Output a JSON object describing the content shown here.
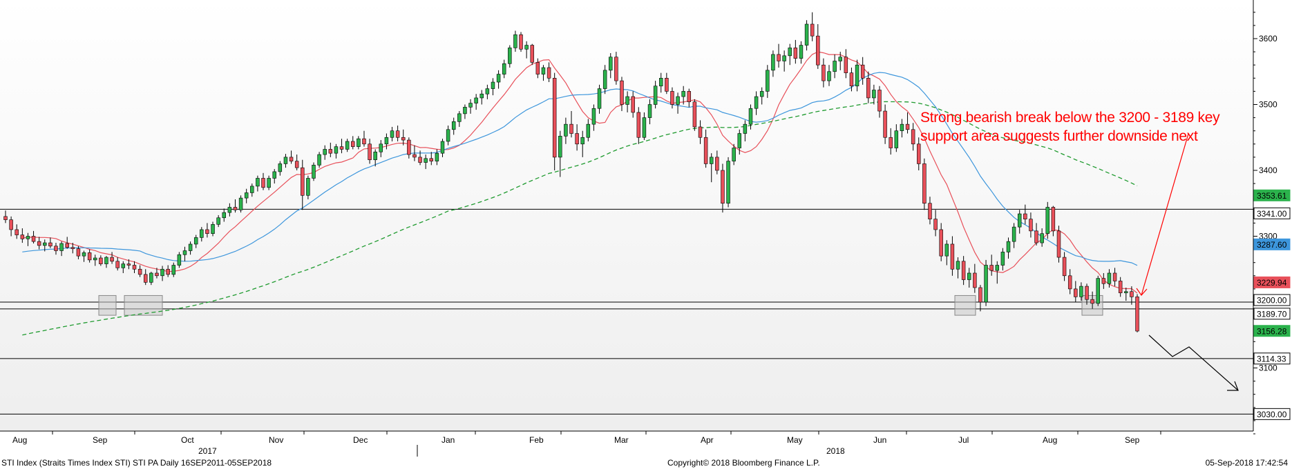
{
  "chart_data": {
    "type": "candlestick",
    "title": "",
    "series_label": "STI Index (Straits Times Index STI) STI PA  Daily 16SEP2011-05SEP2018",
    "y_axis": {
      "side": "right",
      "ylim": [
        2960,
        3650
      ],
      "ticks": [
        3100,
        3200,
        3300,
        3400,
        3500,
        3600
      ],
      "log": false
    },
    "x_axis": {
      "months": [
        "Aug",
        "Sep",
        "Oct",
        "Nov",
        "Dec",
        "Jan",
        "Feb",
        "Mar",
        "Apr",
        "May",
        "Jun",
        "Jul",
        "Aug",
        "Sep"
      ],
      "years": [
        "2017",
        "2018"
      ]
    },
    "grid": false,
    "candles_ohlc": [
      [
        3330,
        3339,
        3320,
        3325
      ],
      [
        3325,
        3330,
        3300,
        3310
      ],
      [
        3310,
        3318,
        3296,
        3302
      ],
      [
        3302,
        3312,
        3290,
        3296
      ],
      [
        3296,
        3305,
        3285,
        3300
      ],
      [
        3300,
        3308,
        3289,
        3292
      ],
      [
        3292,
        3299,
        3280,
        3286
      ],
      [
        3286,
        3295,
        3277,
        3290
      ],
      [
        3290,
        3298,
        3282,
        3285
      ],
      [
        3285,
        3290,
        3272,
        3278
      ],
      [
        3278,
        3292,
        3270,
        3289
      ],
      [
        3289,
        3299,
        3281,
        3283
      ],
      [
        3283,
        3290,
        3274,
        3281
      ],
      [
        3281,
        3285,
        3265,
        3270
      ],
      [
        3270,
        3278,
        3261,
        3275
      ],
      [
        3275,
        3280,
        3260,
        3264
      ],
      [
        3264,
        3272,
        3255,
        3267
      ],
      [
        3267,
        3271,
        3255,
        3258
      ],
      [
        3258,
        3270,
        3252,
        3268
      ],
      [
        3268,
        3276,
        3258,
        3262
      ],
      [
        3262,
        3268,
        3248,
        3252
      ],
      [
        3252,
        3262,
        3244,
        3258
      ],
      [
        3258,
        3265,
        3250,
        3256
      ],
      [
        3256,
        3262,
        3244,
        3250
      ],
      [
        3250,
        3256,
        3238,
        3242
      ],
      [
        3242,
        3250,
        3226,
        3230
      ],
      [
        3230,
        3246,
        3226,
        3244
      ],
      [
        3244,
        3252,
        3236,
        3240
      ],
      [
        3240,
        3255,
        3232,
        3250
      ],
      [
        3250,
        3256,
        3238,
        3242
      ],
      [
        3242,
        3260,
        3238,
        3256
      ],
      [
        3256,
        3276,
        3252,
        3272
      ],
      [
        3272,
        3284,
        3262,
        3278
      ],
      [
        3278,
        3292,
        3272,
        3288
      ],
      [
        3288,
        3302,
        3282,
        3298
      ],
      [
        3298,
        3314,
        3292,
        3310
      ],
      [
        3310,
        3320,
        3298,
        3304
      ],
      [
        3304,
        3322,
        3300,
        3318
      ],
      [
        3318,
        3332,
        3314,
        3328
      ],
      [
        3328,
        3342,
        3322,
        3336
      ],
      [
        3336,
        3350,
        3330,
        3344
      ],
      [
        3344,
        3356,
        3336,
        3340
      ],
      [
        3340,
        3362,
        3336,
        3358
      ],
      [
        3358,
        3372,
        3350,
        3366
      ],
      [
        3366,
        3380,
        3360,
        3376
      ],
      [
        3376,
        3392,
        3368,
        3388
      ],
      [
        3388,
        3396,
        3370,
        3374
      ],
      [
        3374,
        3392,
        3370,
        3388
      ],
      [
        3388,
        3402,
        3380,
        3398
      ],
      [
        3398,
        3414,
        3392,
        3410
      ],
      [
        3410,
        3425,
        3404,
        3420
      ],
      [
        3420,
        3430,
        3410,
        3414
      ],
      [
        3414,
        3424,
        3400,
        3404
      ],
      [
        3404,
        3416,
        3340,
        3362
      ],
      [
        3362,
        3392,
        3356,
        3388
      ],
      [
        3388,
        3412,
        3384,
        3408
      ],
      [
        3408,
        3428,
        3404,
        3424
      ],
      [
        3424,
        3438,
        3416,
        3432
      ],
      [
        3432,
        3442,
        3420,
        3426
      ],
      [
        3426,
        3440,
        3418,
        3436
      ],
      [
        3436,
        3448,
        3426,
        3432
      ],
      [
        3432,
        3448,
        3428,
        3444
      ],
      [
        3444,
        3452,
        3432,
        3436
      ],
      [
        3436,
        3452,
        3432,
        3448
      ],
      [
        3448,
        3460,
        3436,
        3440
      ],
      [
        3440,
        3448,
        3410,
        3416
      ],
      [
        3416,
        3432,
        3406,
        3428
      ],
      [
        3428,
        3446,
        3420,
        3440
      ],
      [
        3440,
        3456,
        3432,
        3450
      ],
      [
        3450,
        3466,
        3444,
        3460
      ],
      [
        3460,
        3468,
        3444,
        3450
      ],
      [
        3450,
        3462,
        3438,
        3446
      ],
      [
        3446,
        3450,
        3418,
        3424
      ],
      [
        3424,
        3438,
        3414,
        3420
      ],
      [
        3420,
        3430,
        3408,
        3412
      ],
      [
        3412,
        3424,
        3402,
        3418
      ],
      [
        3418,
        3428,
        3408,
        3414
      ],
      [
        3414,
        3432,
        3408,
        3426
      ],
      [
        3426,
        3448,
        3420,
        3444
      ],
      [
        3444,
        3468,
        3438,
        3462
      ],
      [
        3462,
        3480,
        3454,
        3474
      ],
      [
        3474,
        3490,
        3466,
        3486
      ],
      [
        3486,
        3500,
        3478,
        3496
      ],
      [
        3496,
        3508,
        3486,
        3502
      ],
      [
        3502,
        3516,
        3492,
        3510
      ],
      [
        3510,
        3522,
        3500,
        3516
      ],
      [
        3516,
        3530,
        3508,
        3524
      ],
      [
        3524,
        3540,
        3514,
        3534
      ],
      [
        3534,
        3552,
        3524,
        3546
      ],
      [
        3546,
        3568,
        3540,
        3562
      ],
      [
        3562,
        3590,
        3556,
        3586
      ],
      [
        3586,
        3612,
        3580,
        3606
      ],
      [
        3606,
        3610,
        3580,
        3584
      ],
      [
        3584,
        3596,
        3570,
        3590
      ],
      [
        3590,
        3592,
        3560,
        3564
      ],
      [
        3564,
        3570,
        3540,
        3546
      ],
      [
        3546,
        3560,
        3536,
        3556
      ],
      [
        3556,
        3564,
        3534,
        3540
      ],
      [
        3540,
        3548,
        3400,
        3420
      ],
      [
        3420,
        3460,
        3390,
        3452
      ],
      [
        3452,
        3480,
        3440,
        3470
      ],
      [
        3470,
        3490,
        3450,
        3456
      ],
      [
        3456,
        3470,
        3430,
        3440
      ],
      [
        3440,
        3460,
        3420,
        3450
      ],
      [
        3450,
        3478,
        3444,
        3470
      ],
      [
        3470,
        3500,
        3460,
        3494
      ],
      [
        3494,
        3530,
        3486,
        3524
      ],
      [
        3524,
        3560,
        3516,
        3552
      ],
      [
        3552,
        3578,
        3540,
        3572
      ],
      [
        3572,
        3580,
        3530,
        3536
      ],
      [
        3536,
        3542,
        3490,
        3500
      ],
      [
        3500,
        3520,
        3488,
        3512
      ],
      [
        3512,
        3520,
        3480,
        3488
      ],
      [
        3488,
        3496,
        3440,
        3450
      ],
      [
        3450,
        3488,
        3446,
        3480
      ],
      [
        3480,
        3508,
        3470,
        3500
      ],
      [
        3500,
        3536,
        3494,
        3528
      ],
      [
        3528,
        3548,
        3518,
        3540
      ],
      [
        3540,
        3548,
        3516,
        3520
      ],
      [
        3520,
        3526,
        3494,
        3500
      ],
      [
        3500,
        3518,
        3486,
        3512
      ],
      [
        3512,
        3528,
        3500,
        3520
      ],
      [
        3520,
        3524,
        3496,
        3504
      ],
      [
        3504,
        3508,
        3460,
        3466
      ],
      [
        3466,
        3476,
        3440,
        3450
      ],
      [
        3450,
        3462,
        3404,
        3410
      ],
      [
        3410,
        3426,
        3382,
        3420
      ],
      [
        3420,
        3430,
        3394,
        3400
      ],
      [
        3400,
        3410,
        3336,
        3350
      ],
      [
        3350,
        3420,
        3344,
        3414
      ],
      [
        3414,
        3440,
        3408,
        3434
      ],
      [
        3434,
        3462,
        3424,
        3456
      ],
      [
        3456,
        3476,
        3444,
        3470
      ],
      [
        3470,
        3500,
        3462,
        3494
      ],
      [
        3494,
        3520,
        3484,
        3512
      ],
      [
        3512,
        3526,
        3500,
        3520
      ],
      [
        3520,
        3560,
        3510,
        3552
      ],
      [
        3552,
        3582,
        3542,
        3576
      ],
      [
        3576,
        3592,
        3556,
        3566
      ],
      [
        3566,
        3582,
        3550,
        3574
      ],
      [
        3574,
        3592,
        3560,
        3586
      ],
      [
        3586,
        3598,
        3562,
        3570
      ],
      [
        3570,
        3596,
        3562,
        3590
      ],
      [
        3590,
        3628,
        3582,
        3622
      ],
      [
        3622,
        3640,
        3596,
        3604
      ],
      [
        3604,
        3622,
        3554,
        3560
      ],
      [
        3560,
        3570,
        3526,
        3536
      ],
      [
        3536,
        3560,
        3528,
        3550
      ],
      [
        3550,
        3576,
        3540,
        3566
      ],
      [
        3566,
        3580,
        3552,
        3572
      ],
      [
        3572,
        3584,
        3540,
        3548
      ],
      [
        3548,
        3556,
        3520,
        3528
      ],
      [
        3528,
        3568,
        3520,
        3560
      ],
      [
        3560,
        3572,
        3530,
        3540
      ],
      [
        3540,
        3550,
        3502,
        3510
      ],
      [
        3510,
        3530,
        3500,
        3522
      ],
      [
        3522,
        3528,
        3480,
        3490
      ],
      [
        3490,
        3500,
        3440,
        3450
      ],
      [
        3450,
        3464,
        3424,
        3434
      ],
      [
        3434,
        3470,
        3428,
        3460
      ],
      [
        3460,
        3478,
        3450,
        3470
      ],
      [
        3470,
        3488,
        3456,
        3462
      ],
      [
        3462,
        3472,
        3430,
        3440
      ],
      [
        3440,
        3450,
        3400,
        3410
      ],
      [
        3410,
        3418,
        3340,
        3350
      ],
      [
        3350,
        3360,
        3318,
        3326
      ],
      [
        3326,
        3340,
        3300,
        3310
      ],
      [
        3310,
        3320,
        3262,
        3270
      ],
      [
        3270,
        3294,
        3256,
        3288
      ],
      [
        3288,
        3300,
        3240,
        3250
      ],
      [
        3250,
        3268,
        3236,
        3262
      ],
      [
        3262,
        3270,
        3226,
        3234
      ],
      [
        3234,
        3252,
        3222,
        3244
      ],
      [
        3244,
        3258,
        3214,
        3222
      ],
      [
        3222,
        3226,
        3186,
        3200
      ],
      [
        3200,
        3264,
        3194,
        3256
      ],
      [
        3256,
        3272,
        3240,
        3248
      ],
      [
        3248,
        3262,
        3228,
        3256
      ],
      [
        3256,
        3282,
        3248,
        3276
      ],
      [
        3276,
        3298,
        3266,
        3292
      ],
      [
        3292,
        3320,
        3282,
        3314
      ],
      [
        3314,
        3340,
        3304,
        3334
      ],
      [
        3334,
        3348,
        3318,
        3326
      ],
      [
        3326,
        3336,
        3298,
        3308
      ],
      [
        3308,
        3320,
        3286,
        3290
      ],
      [
        3290,
        3312,
        3284,
        3304
      ],
      [
        3304,
        3352,
        3296,
        3344
      ],
      [
        3344,
        3346,
        3300,
        3308
      ],
      [
        3308,
        3316,
        3260,
        3268
      ],
      [
        3268,
        3276,
        3232,
        3240
      ],
      [
        3240,
        3250,
        3212,
        3220
      ],
      [
        3220,
        3232,
        3200,
        3208
      ],
      [
        3208,
        3230,
        3202,
        3224
      ],
      [
        3224,
        3228,
        3196,
        3204
      ],
      [
        3204,
        3216,
        3190,
        3198
      ],
      [
        3198,
        3240,
        3194,
        3236
      ],
      [
        3236,
        3244,
        3220,
        3228
      ],
      [
        3228,
        3250,
        3222,
        3244
      ],
      [
        3244,
        3252,
        3224,
        3232
      ],
      [
        3232,
        3238,
        3208,
        3214
      ],
      [
        3214,
        3222,
        3202,
        3216
      ],
      [
        3216,
        3224,
        3196,
        3208
      ],
      [
        3208,
        3212,
        3154,
        3156
      ]
    ],
    "moving_averages": [
      {
        "name": "",
        "color": "#e8505a",
        "last": 3229.94
      },
      {
        "name": "",
        "color": "#3d96dc",
        "last": 3287.6
      },
      {
        "name": "",
        "color": "#1e9a2e",
        "dashed": true,
        "last": 3353.61
      }
    ],
    "horizontal_lines": [
      3341.0,
      3200.0,
      3189.7,
      3114.33,
      3030.0
    ],
    "price_tags": [
      {
        "label": "3353.61",
        "value": 3353.61,
        "bg": "#2bb24c",
        "fg": "#000000"
      },
      {
        "label": "3341.00",
        "value": 3341.0,
        "bg": "#ffffff",
        "fg": "#000000",
        "border": "#000000"
      },
      {
        "label": "3287.60",
        "value": 3287.6,
        "bg": "#3d96dc",
        "fg": "#000000"
      },
      {
        "label": "3229.94",
        "value": 3229.94,
        "bg": "#e8505a",
        "fg": "#000000"
      },
      {
        "label": "3200.00",
        "value": 3200.0,
        "bg": "#ffffff",
        "fg": "#000000",
        "border": "#000000"
      },
      {
        "label": "3189.70",
        "value": 3189.7,
        "bg": "#ffffff",
        "fg": "#000000",
        "border": "#000000"
      },
      {
        "label": "3156.28",
        "value": 3156.28,
        "bg": "#2bb24c",
        "fg": "#000000"
      },
      {
        "label": "3114.33",
        "value": 3114.33,
        "bg": "#ffffff",
        "fg": "#000000",
        "border": "#000000"
      },
      {
        "label": "3030.00",
        "value": 3030.0,
        "bg": "#ffffff",
        "fg": "#000000",
        "border": "#000000"
      }
    ],
    "annotation": "Strong bearish break below the 3200 - 3189 key support area suggests further downside next",
    "colors": {
      "up": "#2bb24c",
      "down": "#e8505a",
      "annotation": "#ff0000"
    }
  },
  "footer": {
    "left": "STI Index (Straits Times Index STI) STI PA  Daily 16SEP2011-05SEP2018",
    "center": "Copyright© 2018 Bloomberg Finance L.P.",
    "right": "05-Sep-2018 17:42:54"
  }
}
